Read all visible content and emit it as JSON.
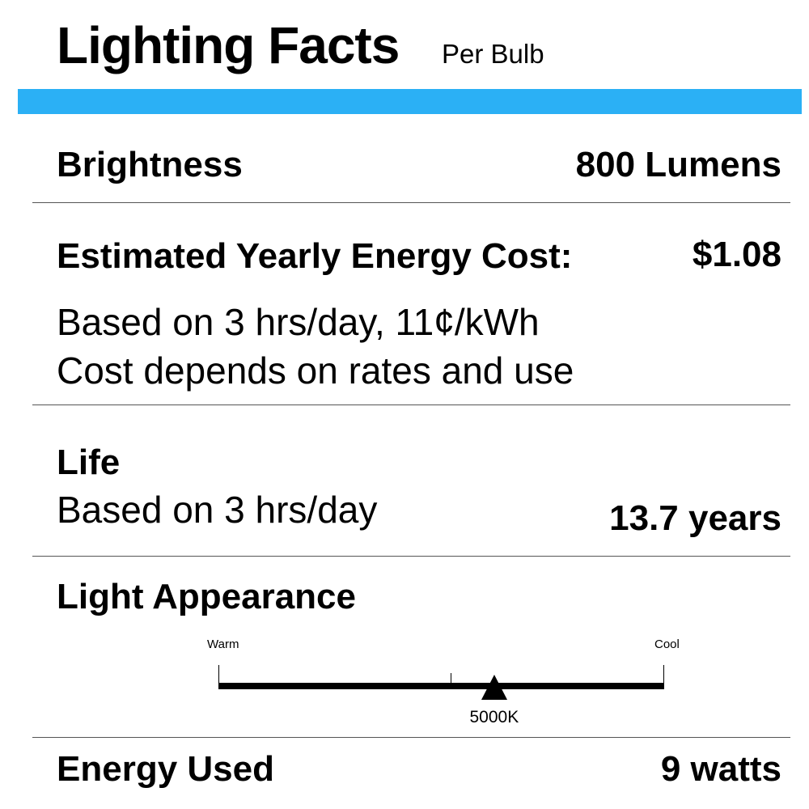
{
  "header": {
    "title": "Lighting Facts",
    "subtitle": "Per Bulb",
    "accent_color": "#2bb0f5"
  },
  "brightness": {
    "label": "Brightness",
    "value": "800 Lumens"
  },
  "energy_cost": {
    "label": "Estimated Yearly Energy Cost:",
    "value": "$1.08",
    "note1": "Based on 3 hrs/day, 11¢/kWh",
    "note2": "Cost depends on rates and use"
  },
  "life": {
    "label": "Life",
    "note": "Based on 3 hrs/day",
    "value": "13.7 years"
  },
  "light_appearance": {
    "label": "Light Appearance",
    "warm_label": "Warm",
    "cool_label": "Cool",
    "marker_label": "5000K",
    "marker_position_fraction": 0.62
  },
  "energy_used": {
    "label": "Energy Used",
    "value": "9 watts"
  }
}
